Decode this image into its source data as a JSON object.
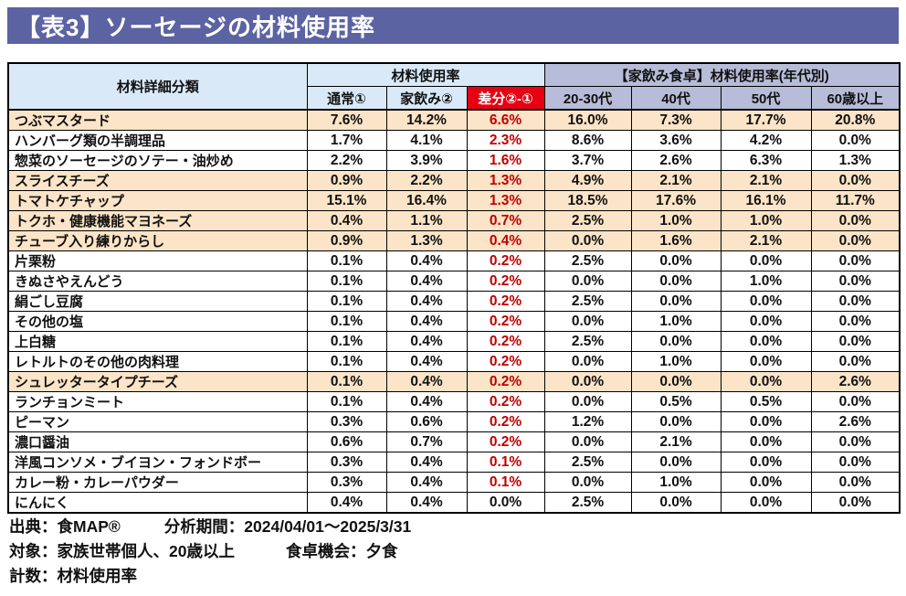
{
  "title": "【表3】ソーセージの材料使用率",
  "colors": {
    "banner": "#5c63a3",
    "header_blue": "#d9e9f7",
    "header_lavender": "#b7bcd8",
    "diff_header_bg": "#e60012",
    "diff_value_text": "#c00000",
    "row_highlight": "#fbe4c7"
  },
  "table": {
    "material_column_label": "材料詳細分類",
    "usage_group_label": "材料使用率",
    "age_group_label": "【家飲み食卓】材料使用率(年代別)",
    "sub_headers": {
      "normal": "通常①",
      "home": "家飲み②",
      "diff": "差分②-①",
      "ages": [
        "20-30代",
        "40代",
        "50代",
        "60歳以上"
      ]
    }
  },
  "chart_data": {
    "type": "table",
    "title": "【表3】ソーセージの材料使用率",
    "unit": "%",
    "columns": [
      "材料詳細分類",
      "通常①",
      "家飲み②",
      "差分②-①",
      "20-30代",
      "40代",
      "50代",
      "60歳以上"
    ],
    "rows": [
      {
        "name": "つぶマスタード",
        "values": [
          7.6,
          14.2,
          6.6,
          16.0,
          7.3,
          17.7,
          20.8
        ],
        "highlight": true
      },
      {
        "name": "ハンバーグ類の半調理品",
        "values": [
          1.7,
          4.1,
          2.3,
          8.6,
          3.6,
          4.2,
          0.0
        ],
        "highlight": false
      },
      {
        "name": "惣菜のソーセージのソテー・油炒め",
        "values": [
          2.2,
          3.9,
          1.6,
          3.7,
          2.6,
          6.3,
          1.3
        ],
        "highlight": false
      },
      {
        "name": "スライスチーズ",
        "values": [
          0.9,
          2.2,
          1.3,
          4.9,
          2.1,
          2.1,
          0.0
        ],
        "highlight": true
      },
      {
        "name": "トマトケチャップ",
        "values": [
          15.1,
          16.4,
          1.3,
          18.5,
          17.6,
          16.1,
          11.7
        ],
        "highlight": true
      },
      {
        "name": "トクホ・健康機能マヨネーズ",
        "values": [
          0.4,
          1.1,
          0.7,
          2.5,
          1.0,
          1.0,
          0.0
        ],
        "highlight": true
      },
      {
        "name": "チューブ入り練りからし",
        "values": [
          0.9,
          1.3,
          0.4,
          0.0,
          1.6,
          2.1,
          0.0
        ],
        "highlight": true
      },
      {
        "name": "片栗粉",
        "values": [
          0.1,
          0.4,
          0.2,
          2.5,
          0.0,
          0.0,
          0.0
        ],
        "highlight": false
      },
      {
        "name": "きぬさやえんどう",
        "values": [
          0.1,
          0.4,
          0.2,
          0.0,
          0.0,
          1.0,
          0.0
        ],
        "highlight": false
      },
      {
        "name": "絹ごし豆腐",
        "values": [
          0.1,
          0.4,
          0.2,
          2.5,
          0.0,
          0.0,
          0.0
        ],
        "highlight": false
      },
      {
        "name": "その他の塩",
        "values": [
          0.1,
          0.4,
          0.2,
          0.0,
          1.0,
          0.0,
          0.0
        ],
        "highlight": false
      },
      {
        "name": "上白糖",
        "values": [
          0.1,
          0.4,
          0.2,
          2.5,
          0.0,
          0.0,
          0.0
        ],
        "highlight": false
      },
      {
        "name": "レトルトのその他の肉料理",
        "values": [
          0.1,
          0.4,
          0.2,
          0.0,
          1.0,
          0.0,
          0.0
        ],
        "highlight": false
      },
      {
        "name": "シュレッタータイプチーズ",
        "values": [
          0.1,
          0.4,
          0.2,
          0.0,
          0.0,
          0.0,
          2.6
        ],
        "highlight": true
      },
      {
        "name": "ランチョンミート",
        "values": [
          0.1,
          0.4,
          0.2,
          0.0,
          0.5,
          0.5,
          0.0
        ],
        "highlight": false
      },
      {
        "name": "ピーマン",
        "values": [
          0.3,
          0.6,
          0.2,
          1.2,
          0.0,
          0.0,
          2.6
        ],
        "highlight": false
      },
      {
        "name": "濃口醤油",
        "values": [
          0.6,
          0.7,
          0.2,
          0.0,
          2.1,
          0.0,
          0.0
        ],
        "highlight": false
      },
      {
        "name": "洋風コンソメ・ブイヨン・フォンドボー",
        "values": [
          0.3,
          0.4,
          0.1,
          2.5,
          0.0,
          0.0,
          0.0
        ],
        "highlight": false
      },
      {
        "name": "カレー粉・カレーパウダー",
        "values": [
          0.3,
          0.4,
          0.1,
          0.0,
          1.0,
          0.0,
          0.0
        ],
        "highlight": false
      },
      {
        "name": "にんにく",
        "values": [
          0.4,
          0.4,
          0.0,
          2.5,
          0.0,
          0.0,
          0.0
        ],
        "highlight": false
      }
    ]
  },
  "footer": {
    "source": "出典：食MAP®",
    "period": "分析期間：2024/04/01～2025/3/31",
    "target": "対象：家族世帯個人、20歳以上",
    "occasion": "食卓機会：夕食",
    "metric": "計数：材料使用率"
  }
}
